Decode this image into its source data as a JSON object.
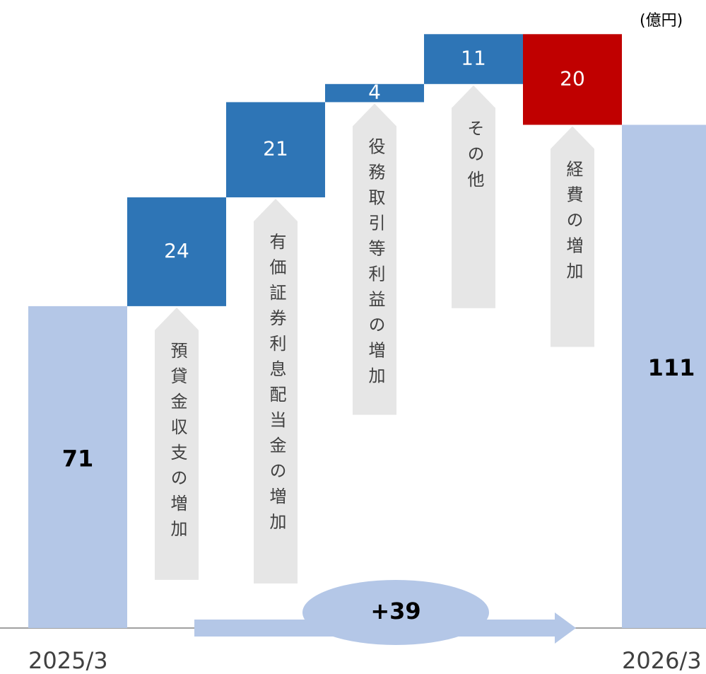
{
  "chart_data": {
    "type": "waterfall",
    "unit": "(億円)",
    "categories": [
      "2025/3",
      "預貸金収支の増加",
      "有価証券利息配当金の増加",
      "役務取引等利益の増加",
      "その他",
      "経費の増加",
      "2026/3"
    ],
    "values": [
      71,
      24,
      21,
      4,
      11,
      -20,
      111
    ],
    "value_labels": [
      "71",
      "24",
      "21",
      "4",
      "11",
      "20",
      "111"
    ],
    "colors": {
      "total": "#b4c7e7",
      "increase": "#2e75b6",
      "decrease": "#c00000"
    },
    "annotation": "+39"
  }
}
